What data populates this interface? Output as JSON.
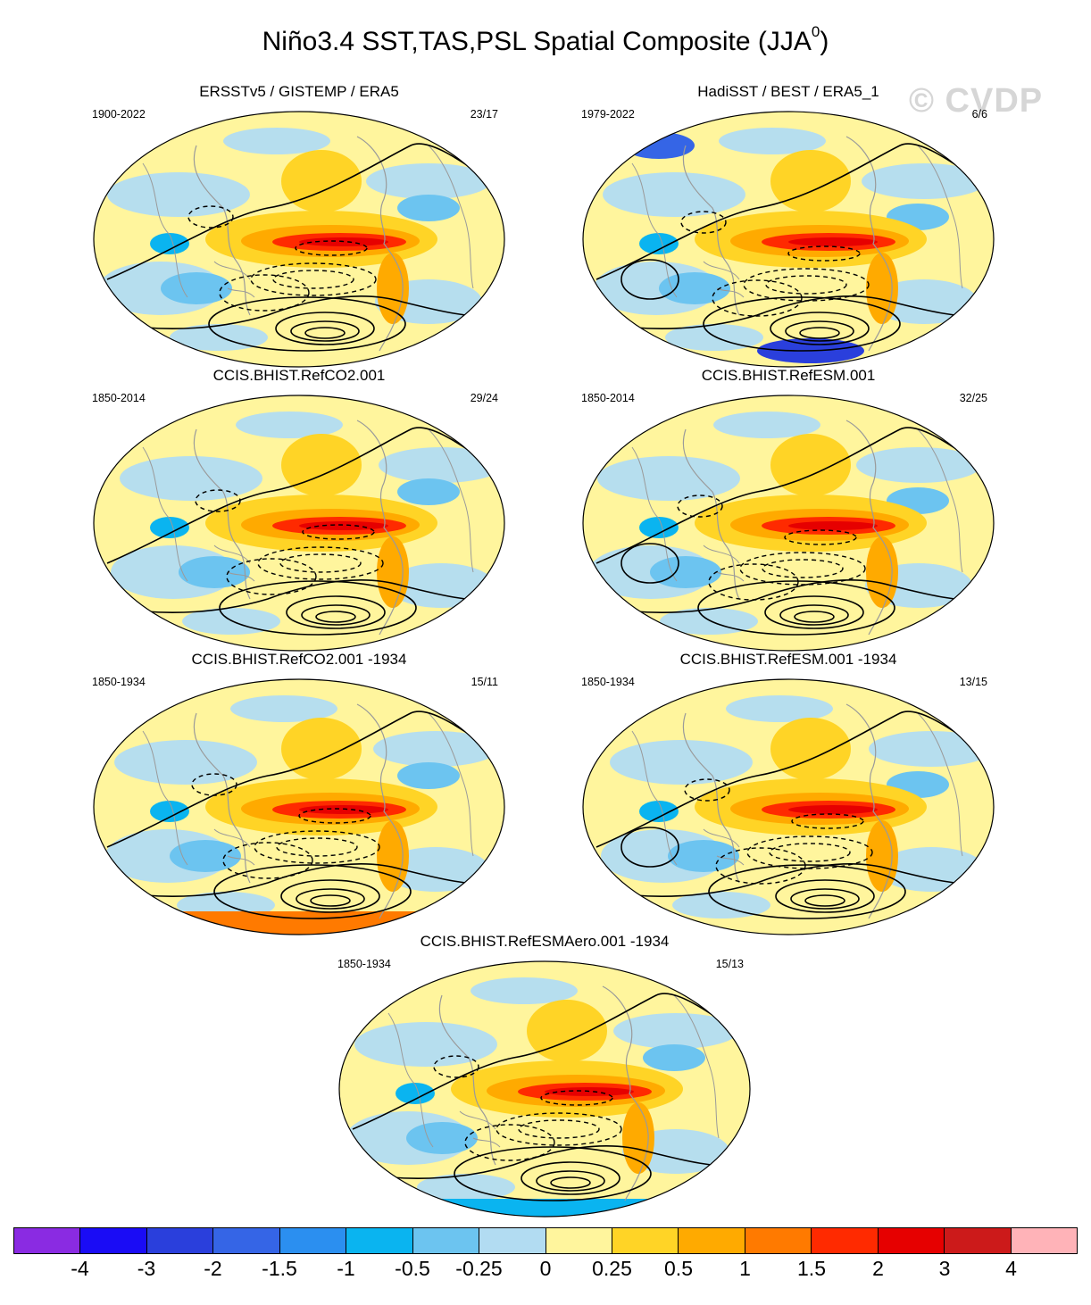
{
  "header": {
    "title": "Niño3.4 SST,TAS,PSL Spatial Composite (JJA",
    "title_sup": "0",
    "title_close": ")",
    "watermark": "© CVDP"
  },
  "panels": [
    {
      "title": "ERSSTv5 / GISTEMP / ERA5",
      "period": "1900-2022",
      "counts": "23/17"
    },
    {
      "title": "HadiSST / BEST / ERA5_1",
      "period": "1979-2022",
      "counts": "6/6"
    },
    {
      "title": "CCIS.BHIST.RefCO2.001",
      "period": "1850-2014",
      "counts": "29/24"
    },
    {
      "title": "CCIS.BHIST.RefESM.001",
      "period": "1850-2014",
      "counts": "32/25"
    },
    {
      "title": "CCIS.BHIST.RefCO2.001 -1934",
      "period": "1850-1934",
      "counts": "15/11"
    },
    {
      "title": "CCIS.BHIST.RefESM.001 -1934",
      "period": "1850-1934",
      "counts": "13/15"
    },
    {
      "title": "CCIS.BHIST.RefESMAero.001 -1934",
      "period": "1850-1934",
      "counts": "15/13"
    }
  ],
  "colorbar": {
    "colors": [
      "#8a2be2",
      "#1a0cf5",
      "#2a3fdc",
      "#3565e6",
      "#2b8ff0",
      "#0ab4f0",
      "#6cc4f0",
      "#b2dcf2",
      "#fff59d",
      "#ffd426",
      "#ffaa00",
      "#ff7a00",
      "#ff2a00",
      "#e60000",
      "#cc1a1a",
      "#ffb3b8"
    ],
    "labels": [
      "-4",
      "-3",
      "-2",
      "-1.5",
      "-1",
      "-0.5",
      "-0.25",
      "0",
      "0.25",
      "0.5",
      "1",
      "1.5",
      "2",
      "3",
      "4"
    ]
  }
}
